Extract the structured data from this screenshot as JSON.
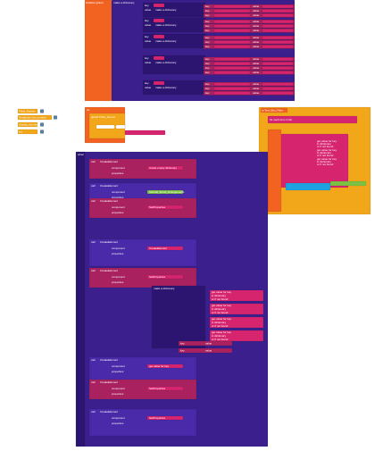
{
  "workspace": {
    "dict_block": {
      "title": "initialize global",
      "to": "to",
      "make": "make a dictionary",
      "key": "key",
      "value": "value"
    },
    "variables": [
      "Thick_Source",
      "Dropdown_for_number",
      "Display_Number",
      "list"
    ],
    "middle_block": {
      "label": "do",
      "global_a": "global Thick_Source",
      "global_b": "global Thick_Source",
      "item": "Text_Box_Filter",
      "text": "Text"
    },
    "right_block": {
      "title": "to Text_Box_Filter",
      "loop": "for each item in list",
      "get": "get value for key",
      "in_dict": "in dictionary",
      "not_found": "or if not found"
    },
    "main_block": {
      "event": "when",
      "call": "call",
      "create": "CreateElement",
      "arrangement": "Vertical_Scroll_Arrangement1",
      "set": "SetProperties",
      "component": "component",
      "properties": "properties",
      "empty": "create empty dictionary",
      "make": "make a dictionary",
      "get": "get value for key",
      "in_dict": "in dictionary",
      "not_found": "or if not found",
      "key": "key",
      "value": "value"
    }
  }
}
